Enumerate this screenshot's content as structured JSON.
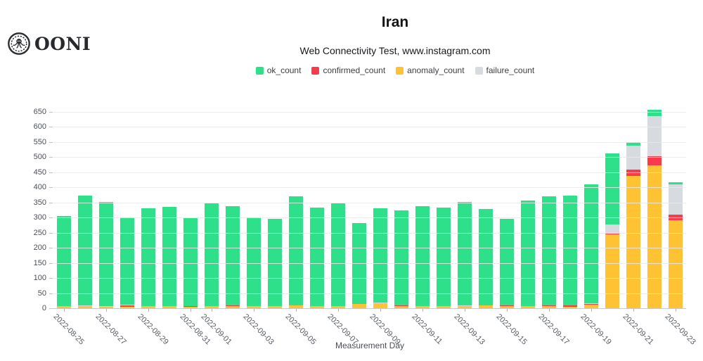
{
  "logo": {
    "text": "OONI"
  },
  "header": {
    "title": "Iran",
    "subtitle": "Web Connectivity Test, www.instagram.com"
  },
  "legend": {
    "items": [
      {
        "label": "ok_count",
        "color": "#2fe08a"
      },
      {
        "label": "confirmed_count",
        "color": "#f93a4d"
      },
      {
        "label": "anomaly_count",
        "color": "#ffc233"
      },
      {
        "label": "failure_count",
        "color": "#d7dbe0"
      }
    ]
  },
  "chart_data": {
    "type": "bar",
    "stacked": true,
    "title": "Iran",
    "subtitle": "Web Connectivity Test, www.instagram.com",
    "xlabel": "Measurement Day",
    "ylabel": "",
    "ylim": [
      0,
      650
    ],
    "yticks": [
      0,
      50,
      100,
      150,
      200,
      250,
      300,
      350,
      400,
      450,
      500,
      550,
      600,
      650
    ],
    "grid": true,
    "legend_position": "top",
    "categories": [
      "2022-08-25",
      "2022-08-26",
      "2022-08-27",
      "2022-08-28",
      "2022-08-29",
      "2022-08-30",
      "2022-08-31",
      "2022-09-01",
      "2022-09-02",
      "2022-09-03",
      "2022-09-04",
      "2022-09-05",
      "2022-09-06",
      "2022-09-07",
      "2022-09-08",
      "2022-09-09",
      "2022-09-10",
      "2022-09-11",
      "2022-09-12",
      "2022-09-13",
      "2022-09-14",
      "2022-09-15",
      "2022-09-16",
      "2022-09-17",
      "2022-09-18",
      "2022-09-19",
      "2022-09-20",
      "2022-09-21",
      "2022-09-22",
      "2022-09-23"
    ],
    "x_tick_labels": [
      "2022-08-25",
      "2022-08-27",
      "2022-08-29",
      "2022-08-31",
      "2022-09-01",
      "2022-09-03",
      "2022-09-05",
      "2022-09-07",
      "2022-09-09",
      "2022-09-11",
      "2022-09-13",
      "2022-09-15",
      "2022-09-17",
      "2022-09-19",
      "2022-09-21",
      "2022-09-23"
    ],
    "stack_order_bottom_to_top": [
      "anomaly_count",
      "confirmed_count",
      "failure_count",
      "ok_count"
    ],
    "series": [
      {
        "name": "ok_count",
        "color": "#2fe08a",
        "values": [
          299,
          364,
          343,
          290,
          324,
          327,
          291,
          339,
          329,
          295,
          290,
          361,
          327,
          340,
          268,
          313,
          315,
          330,
          326,
          343,
          320,
          286,
          350,
          362,
          365,
          393,
          235,
          10,
          22,
          8
        ]
      },
      {
        "name": "confirmed_count",
        "color": "#f93a4d",
        "values": [
          0,
          2,
          0,
          5,
          0,
          1,
          2,
          0,
          2,
          0,
          0,
          1,
          0,
          0,
          0,
          0,
          2,
          0,
          0,
          0,
          0,
          2,
          0,
          2,
          4,
          1,
          3,
          21,
          31,
          19
        ]
      },
      {
        "name": "anomaly_count",
        "color": "#ffc233",
        "values": [
          6,
          6,
          4,
          5,
          7,
          7,
          5,
          8,
          8,
          6,
          6,
          9,
          6,
          7,
          13,
          16,
          8,
          6,
          6,
          8,
          9,
          8,
          7,
          7,
          5,
          12,
          245,
          438,
          473,
          291
        ]
      },
      {
        "name": "failure_count",
        "color": "#d7dbe0",
        "values": [
          0,
          2,
          4,
          1,
          0,
          0,
          1,
          0,
          0,
          0,
          1,
          0,
          1,
          0,
          1,
          3,
          0,
          2,
          1,
          1,
          0,
          0,
          0,
          0,
          0,
          4,
          30,
          80,
          132,
          99
        ]
      }
    ]
  }
}
